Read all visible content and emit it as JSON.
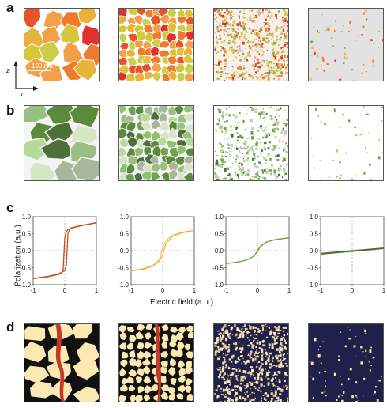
{
  "figure": {
    "labels": {
      "a": "a",
      "b": "b",
      "c": "c",
      "d": "d"
    },
    "scalebar": "100 nm",
    "axis_z": "z",
    "axis_x": "x"
  },
  "chart_data": [
    {
      "type": "line",
      "panel": "c1",
      "xlabel": "Electric field (a.u.)",
      "ylabel": "Polarization (a.u.)",
      "xlim": [
        -1,
        1
      ],
      "ylim": [
        -1,
        1
      ],
      "xticks": [
        -1,
        0,
        1
      ],
      "yticks": [
        -1.0,
        -0.5,
        0.0,
        0.5,
        1.0
      ],
      "series": [
        {
          "color": "#c0501a",
          "x": [
            -1,
            -0.5,
            -0.2,
            -0.1,
            -0.05,
            0,
            0.05,
            0.1,
            0.2,
            0.5,
            1
          ],
          "y": [
            -0.82,
            -0.76,
            -0.7,
            -0.66,
            -0.55,
            0.4,
            0.56,
            0.62,
            0.66,
            0.73,
            0.82
          ]
        },
        {
          "color": "#c0501a",
          "x": [
            1,
            0.5,
            0.2,
            0.15,
            0.1,
            0.05,
            0,
            -0.1,
            -0.2,
            -0.5,
            -1
          ],
          "y": [
            0.82,
            0.74,
            0.67,
            0.62,
            0.5,
            -0.45,
            -0.58,
            -0.64,
            -0.68,
            -0.75,
            -0.82
          ]
        }
      ]
    },
    {
      "type": "line",
      "panel": "c2",
      "xlim": [
        -1,
        1
      ],
      "ylim": [
        -1,
        1
      ],
      "xticks": [
        -1,
        0,
        1
      ],
      "yticks": [
        -1.0,
        -0.5,
        0.0,
        0.5,
        1.0
      ],
      "series": [
        {
          "color": "#f0cc6a",
          "x": [
            -1,
            -0.6,
            -0.3,
            -0.1,
            0,
            0.1,
            0.3,
            0.6,
            1
          ],
          "y": [
            -0.6,
            -0.52,
            -0.42,
            -0.25,
            0.1,
            0.3,
            0.45,
            0.54,
            0.6
          ]
        },
        {
          "color": "#e8b24a",
          "x": [
            1,
            0.6,
            0.3,
            0.1,
            0,
            -0.1,
            -0.3,
            -0.6,
            -1
          ],
          "y": [
            0.6,
            0.52,
            0.42,
            0.2,
            -0.12,
            -0.3,
            -0.45,
            -0.54,
            -0.6
          ]
        }
      ]
    },
    {
      "type": "line",
      "panel": "c3",
      "xlim": [
        -1,
        1
      ],
      "ylim": [
        -1,
        1
      ],
      "xticks": [
        -1,
        0,
        1
      ],
      "yticks": [
        -1.0,
        -0.5,
        0.0,
        0.5,
        1.0
      ],
      "series": [
        {
          "color": "#8fbf5a",
          "x": [
            -1,
            -0.6,
            -0.3,
            -0.1,
            0,
            0.1,
            0.3,
            0.6,
            1
          ],
          "y": [
            -0.38,
            -0.33,
            -0.26,
            -0.15,
            0.0,
            0.15,
            0.26,
            0.33,
            0.38
          ]
        },
        {
          "color": "#6aa83a",
          "x": [
            1,
            0.6,
            0.3,
            0.1,
            0,
            -0.1,
            -0.3,
            -0.6,
            -1
          ],
          "y": [
            0.38,
            0.33,
            0.26,
            0.13,
            -0.02,
            -0.15,
            -0.26,
            -0.33,
            -0.38
          ]
        }
      ]
    },
    {
      "type": "line",
      "panel": "c4",
      "xlim": [
        -1,
        1
      ],
      "ylim": [
        -1,
        1
      ],
      "xticks": [
        -1,
        0,
        1
      ],
      "yticks": [
        -1.0,
        -0.5,
        0.0,
        0.5,
        1.0
      ],
      "series": [
        {
          "color": "#9a4a1a",
          "x": [
            -1,
            1
          ],
          "y": [
            -0.08,
            0.08
          ]
        },
        {
          "color": "#2e7d32",
          "x": [
            -1,
            1
          ],
          "y": [
            -0.1,
            0.06
          ]
        }
      ]
    }
  ]
}
